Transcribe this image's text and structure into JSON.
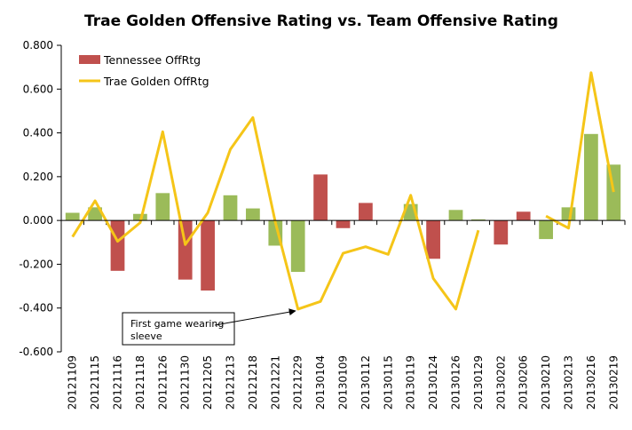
{
  "chart_data": {
    "type": "bar+line",
    "title": "Trae Golden Offensive Rating vs. Team Offensive Rating",
    "categories": [
      "20121109",
      "20121115",
      "20121116",
      "20121118",
      "20121126",
      "20121130",
      "20121205",
      "20121213",
      "20121218",
      "20121221",
      "20121229",
      "20130104",
      "20130109",
      "20130112",
      "20130115",
      "20130119",
      "20130124",
      "20130126",
      "20130129",
      "20130202",
      "20130206",
      "20130210",
      "20130213",
      "20130216",
      "20130219"
    ],
    "bar_series": {
      "name": "Tennessee OffRtg",
      "legend_color": "#c0504d",
      "positive_color": "#9bbb59",
      "negative_color": "#c0504d",
      "values": [
        0.035,
        0.06,
        -0.23,
        0.03,
        0.125,
        -0.27,
        -0.32,
        0.115,
        0.055,
        -0.115,
        -0.235,
        0.21,
        -0.035,
        0.08,
        0,
        0.075,
        -0.175,
        0.048,
        0.005,
        -0.11,
        0.04,
        -0.085,
        0.06,
        0.395,
        0.255
      ],
      "bar_colors": [
        "#9bbb59",
        "#9bbb59",
        "#c0504d",
        "#9bbb59",
        "#9bbb59",
        "#c0504d",
        "#c0504d",
        "#9bbb59",
        "#9bbb59",
        "#9bbb59",
        "#9bbb59",
        "#c0504d",
        "#c0504d",
        "#c0504d",
        "#9bbb59",
        "#9bbb59",
        "#c0504d",
        "#9bbb59",
        "#9bbb59",
        "#c0504d",
        "#c0504d",
        "#9bbb59",
        "#9bbb59",
        "#9bbb59",
        "#9bbb59"
      ]
    },
    "line_series": {
      "name": "Trae Golden OffRtg",
      "color": "#f5c518",
      "values": [
        -0.075,
        0.09,
        -0.095,
        -0.01,
        0.405,
        -0.11,
        0.035,
        0.325,
        0.47,
        -0.01,
        -0.405,
        -0.37,
        -0.15,
        -0.12,
        -0.155,
        0.115,
        -0.265,
        -0.405,
        -0.045,
        null,
        null,
        0.02,
        -0.035,
        0.675,
        0.13
      ]
    },
    "ylim": [
      -0.6,
      0.8
    ],
    "yticks": [
      -0.6,
      -0.4,
      -0.2,
      0.0,
      0.2,
      0.4,
      0.6,
      0.8
    ],
    "ytick_labels": [
      "-0.600",
      "-0.400",
      "-0.200",
      "0.000",
      "0.200",
      "0.400",
      "0.600",
      "0.800"
    ],
    "grid": false,
    "legend_position": "top-left",
    "annotation": {
      "lines": [
        "First game wearing",
        "sleeve"
      ],
      "target_category": "20121229"
    }
  }
}
